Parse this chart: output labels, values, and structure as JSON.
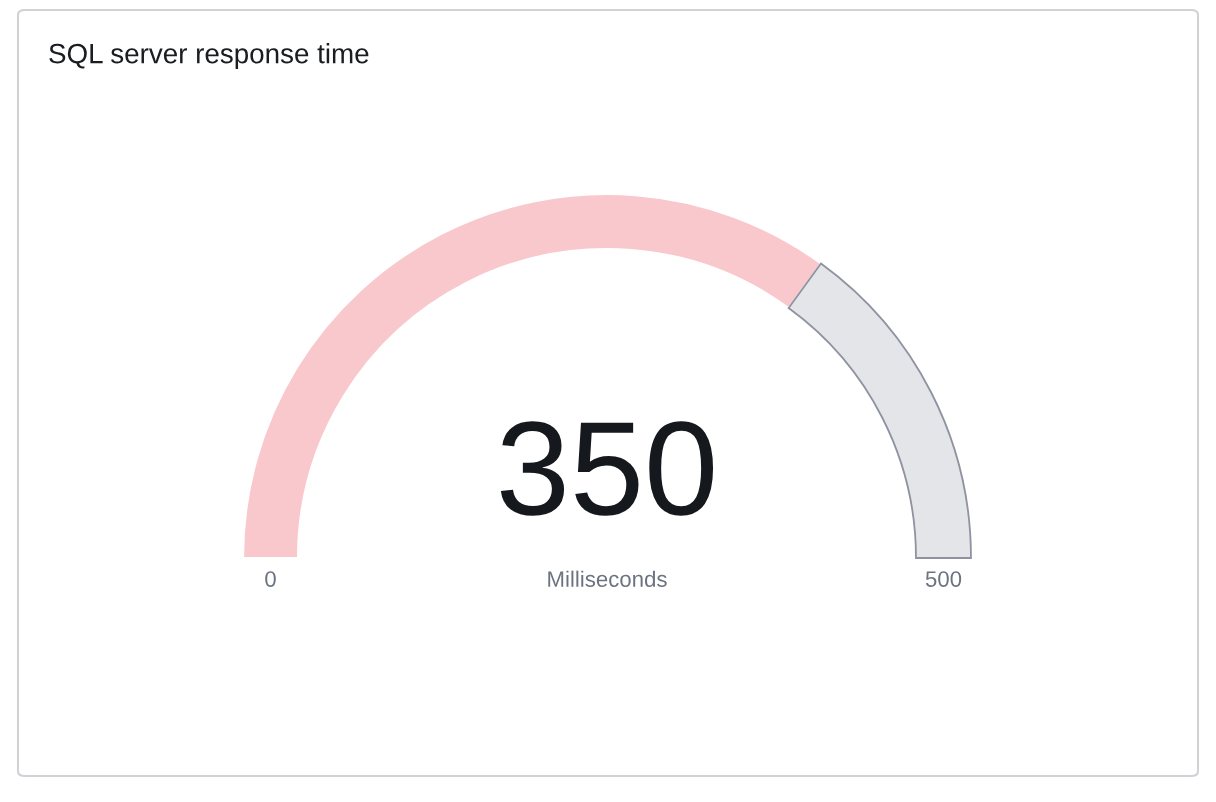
{
  "chart_data": {
    "type": "donut",
    "title": "SQL server response time",
    "categories": [
      null,
      null
    ],
    "values": [
      70,
      30
    ],
    "colors": [
      "#f8c8cc",
      "#e4e5e9"
    ],
    "annotations": [
      "350",
      "Milliseconds",
      "0",
      "500"
    ]
  }
}
